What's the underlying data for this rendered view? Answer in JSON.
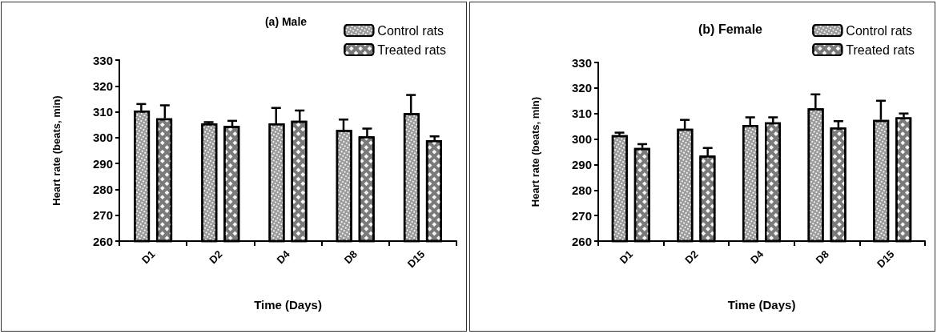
{
  "chart_data": [
    {
      "type": "bar",
      "title": "(a) Male",
      "xlabel": "Time (Days)",
      "ylabel": "Heart rate (beats, min)",
      "categories": [
        "D1",
        "D2",
        "D4",
        "D8",
        "D15"
      ],
      "ylim": [
        260,
        330
      ],
      "yticks": [
        260,
        270,
        280,
        290,
        300,
        310,
        320,
        330
      ],
      "grid": false,
      "legend": "top right",
      "series": [
        {
          "name": "Control rats",
          "color": "#9a9a9a",
          "values": [
            310.5,
            305.5,
            305.5,
            303,
            309.5
          ],
          "errors": [
            [
              310.5,
              313
            ],
            [
              305.5,
              306
            ],
            [
              305.5,
              311.5
            ],
            [
              303,
              307
            ],
            [
              309.5,
              316.5
            ]
          ]
        },
        {
          "name": "Treated rats",
          "color": "#7a7a7a",
          "values": [
            307.5,
            304.5,
            306.5,
            300.5,
            299
          ],
          "errors": [
            [
              307.5,
              312.5
            ],
            [
              304.5,
              306.5
            ],
            [
              306.5,
              310.5
            ],
            [
              300.5,
              303.5
            ],
            [
              299,
              300.5
            ]
          ]
        }
      ]
    },
    {
      "type": "bar",
      "title": "(b) Female",
      "xlabel": "Time (Days)",
      "ylabel": "Heart rate (beats, min)",
      "categories": [
        "D1",
        "D2",
        "D4",
        "D8",
        "D15"
      ],
      "ylim": [
        260,
        330
      ],
      "yticks": [
        260,
        270,
        280,
        290,
        300,
        310,
        320,
        330
      ],
      "grid": false,
      "legend": "top right",
      "series": [
        {
          "name": "Control rats",
          "color": "#9a9a9a",
          "values": [
            301.5,
            304,
            305.5,
            312,
            307.5
          ],
          "errors": [
            [
              301.5,
              302.5
            ],
            [
              304,
              307.5
            ],
            [
              305.5,
              308.5
            ],
            [
              312,
              317.5
            ],
            [
              307.5,
              315
            ]
          ]
        },
        {
          "name": "Treated rats",
          "color": "#7a7a7a",
          "values": [
            296.5,
            293.5,
            306.5,
            304.5,
            308.5
          ],
          "errors": [
            [
              296.5,
              298
            ],
            [
              293.5,
              296.5
            ],
            [
              306.5,
              308.5
            ],
            [
              304.5,
              307
            ],
            [
              308.5,
              310
            ]
          ]
        }
      ]
    }
  ]
}
